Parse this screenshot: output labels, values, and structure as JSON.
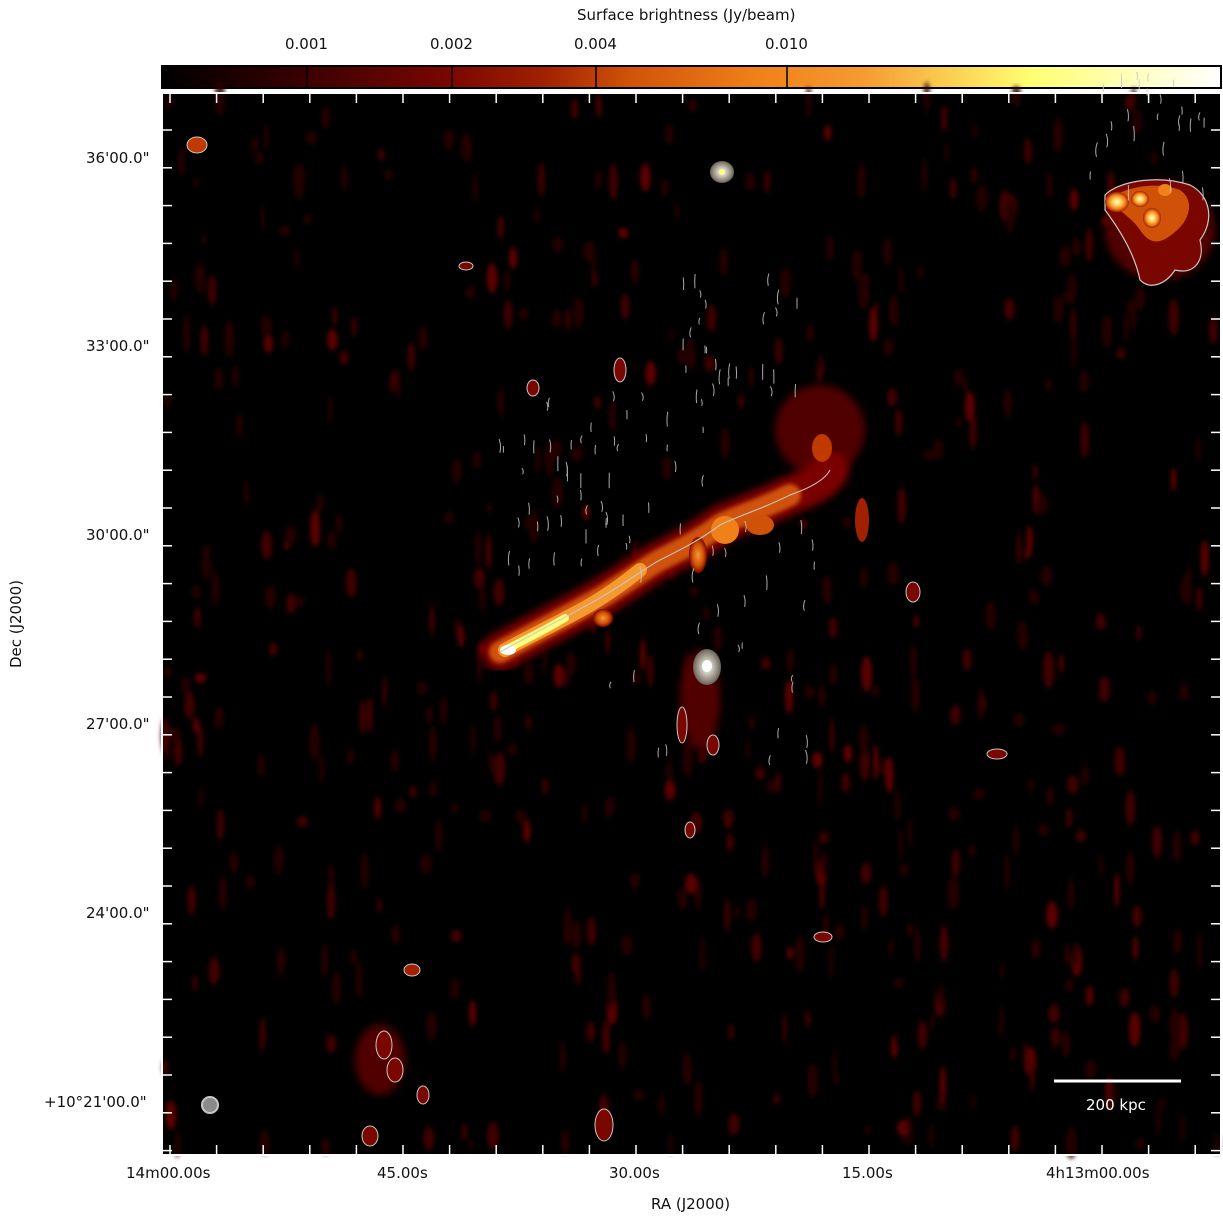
{
  "colorbar": {
    "label": "Surface brightness (Jy/beam)",
    "ticks": [
      {
        "value": 0.001,
        "label": "0.001"
      },
      {
        "value": 0.002,
        "label": "0.002"
      },
      {
        "value": 0.004,
        "label": "0.004"
      },
      {
        "value": 0.01,
        "label": "0.010"
      }
    ],
    "colormap": [
      "#000000",
      "#3a0000",
      "#7a0600",
      "#c03a00",
      "#f07a10",
      "#f5a030",
      "#ffff70",
      "#ffffff"
    ]
  },
  "axes": {
    "xlabel": "RA (J2000)",
    "ylabel": "Dec (J2000)",
    "x_ticks": [
      "14m00.00s",
      "45.00s",
      "30.00s",
      "15.00s",
      "4h13m00.00s"
    ],
    "y_ticks": [
      "36'00.0\"",
      "33'00.0\"",
      "30'00.0\"",
      "27'00.0\"",
      "24'00.0\"",
      "+10°21'00.0\""
    ]
  },
  "scalebar": {
    "label": "200 kpc"
  },
  "colors": {
    "background": "#000000",
    "contour": "#c8c8c8",
    "frame": "#ffffff"
  }
}
